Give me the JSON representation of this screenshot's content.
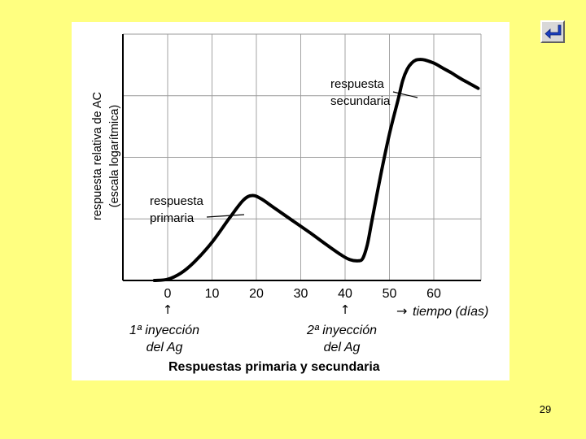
{
  "slide": {
    "number": "29",
    "return_icon": "return-arrow-icon",
    "colors": {
      "background": "#ffff80",
      "figure": "#ffffff",
      "curve": "#000000",
      "button_icon": "#1a3fbf"
    }
  },
  "chart_data": {
    "type": "line",
    "title": "Respuestas primaria y secundaria",
    "xlabel": "tiempo (días)",
    "ylabel": "respuesta relativa de AC",
    "ylabel2": "(escala logarítmica)",
    "y_scale": "log",
    "grid": true,
    "xlim": [
      -4,
      70
    ],
    "x_ticks": [
      0,
      10,
      20,
      30,
      40,
      50,
      60
    ],
    "y_ticks_labeled": false,
    "y_level_units": "0 = baseline, 4 = top of plot",
    "series": [
      {
        "x": [
          -3,
          0,
          3,
          6,
          10,
          14,
          17,
          19,
          21,
          24,
          28,
          32,
          36,
          39,
          41,
          43,
          44,
          45,
          46,
          48,
          50,
          52,
          53,
          54,
          55,
          56,
          57,
          58,
          60,
          62,
          64,
          66,
          68,
          70
        ],
        "y": [
          0.0,
          0.02,
          0.12,
          0.3,
          0.62,
          1.02,
          1.3,
          1.38,
          1.33,
          1.18,
          0.98,
          0.78,
          0.57,
          0.42,
          0.34,
          0.32,
          0.36,
          0.58,
          0.95,
          1.7,
          2.38,
          2.95,
          3.25,
          3.43,
          3.53,
          3.58,
          3.59,
          3.58,
          3.53,
          3.45,
          3.37,
          3.28,
          3.2,
          3.12
        ]
      }
    ],
    "annotations": [
      {
        "text_lines": [
          "respuesta",
          "primaria"
        ],
        "x": 20,
        "y": 1.38
      },
      {
        "text_lines": [
          "respuesta",
          "secundaria"
        ],
        "x": 55,
        "y": 3.55
      }
    ],
    "events": [
      {
        "arrow": "↑",
        "x": 0,
        "text_lines": [
          "1ª inyección",
          "del Ag"
        ]
      },
      {
        "arrow": "↑",
        "x": 40,
        "text_lines": [
          "2ª inyección",
          "del Ag"
        ]
      }
    ],
    "x_arrow": "→"
  }
}
